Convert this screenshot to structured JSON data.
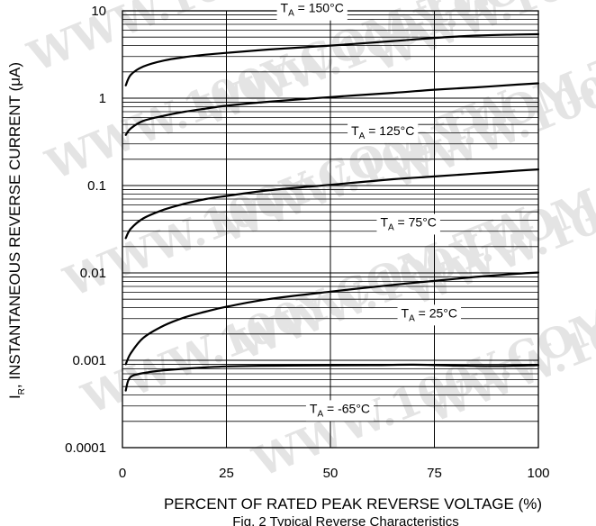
{
  "chart_data": {
    "type": "line",
    "caption": "Fig. 2 Typical Reverse Characteristics",
    "xlabel": "PERCENT OF RATED PEAK REVERSE VOLTAGE (%)",
    "ylabel": {
      "main": "I",
      "sub": "R",
      "rest": ", INSTANTANEOUS REVERSE CURRENT (μA)"
    },
    "x_scale": "linear",
    "y_scale": "log",
    "xlim": [
      0,
      100
    ],
    "ylim": [
      0.0001,
      10
    ],
    "grid": true,
    "x_ticks": [
      {
        "value": 0,
        "label": "0"
      },
      {
        "value": 25,
        "label": "25"
      },
      {
        "value": 50,
        "label": "50"
      },
      {
        "value": 75,
        "label": "75"
      },
      {
        "value": 100,
        "label": "100"
      }
    ],
    "y_ticks": [
      {
        "value": 10,
        "label": "10"
      },
      {
        "value": 1,
        "label": "1"
      },
      {
        "value": 0.1,
        "label": "0.1"
      },
      {
        "value": 0.01,
        "label": "0.01"
      },
      {
        "value": 0.001,
        "label": "0.001"
      },
      {
        "value": 0.0001,
        "label": "0.0001"
      }
    ],
    "series": [
      {
        "name": "150°C",
        "label": {
          "pre": "T",
          "sub": "A",
          "post": " = 150°C",
          "at_x": 38
        },
        "points": [
          [
            0.8,
            1.4
          ],
          [
            2,
            1.85
          ],
          [
            5,
            2.3
          ],
          [
            10,
            2.7
          ],
          [
            15,
            2.95
          ],
          [
            20,
            3.15
          ],
          [
            25,
            3.3
          ],
          [
            35,
            3.6
          ],
          [
            50,
            4.0
          ],
          [
            65,
            4.5
          ],
          [
            75,
            4.9
          ],
          [
            85,
            5.2
          ],
          [
            95,
            5.35
          ],
          [
            100,
            5.4
          ]
        ]
      },
      {
        "name": "125°C",
        "label": {
          "pre": "T",
          "sub": "A",
          "post": " = 125°C",
          "at_x": 55
        },
        "points": [
          [
            0.8,
            0.38
          ],
          [
            2,
            0.45
          ],
          [
            5,
            0.55
          ],
          [
            10,
            0.63
          ],
          [
            15,
            0.7
          ],
          [
            20,
            0.76
          ],
          [
            25,
            0.82
          ],
          [
            35,
            0.91
          ],
          [
            50,
            1.03
          ],
          [
            65,
            1.15
          ],
          [
            75,
            1.25
          ],
          [
            85,
            1.33
          ],
          [
            95,
            1.43
          ],
          [
            100,
            1.48
          ]
        ]
      },
      {
        "name": "75°C",
        "label": {
          "pre": "T",
          "sub": "A",
          "post": " = 75°C",
          "at_x": 62
        },
        "points": [
          [
            0.8,
            0.025
          ],
          [
            2,
            0.032
          ],
          [
            5,
            0.042
          ],
          [
            10,
            0.053
          ],
          [
            15,
            0.062
          ],
          [
            20,
            0.07
          ],
          [
            25,
            0.076
          ],
          [
            35,
            0.088
          ],
          [
            50,
            0.102
          ],
          [
            65,
            0.118
          ],
          [
            75,
            0.127
          ],
          [
            85,
            0.137
          ],
          [
            95,
            0.148
          ],
          [
            100,
            0.153
          ]
        ]
      },
      {
        "name": "25°C",
        "label": {
          "pre": "T",
          "sub": "A",
          "post": " = 25°C",
          "at_x": 67
        },
        "points": [
          [
            0.8,
            0.0009
          ],
          [
            2,
            0.0012
          ],
          [
            5,
            0.0018
          ],
          [
            10,
            0.0025
          ],
          [
            15,
            0.0031
          ],
          [
            20,
            0.0036
          ],
          [
            25,
            0.0041
          ],
          [
            35,
            0.005
          ],
          [
            50,
            0.0061
          ],
          [
            65,
            0.0073
          ],
          [
            75,
            0.0081
          ],
          [
            85,
            0.009
          ],
          [
            95,
            0.0098
          ],
          [
            100,
            0.0101
          ]
        ]
      },
      {
        "name": "-65°C",
        "label": {
          "pre": "T",
          "sub": "A",
          "post": " = -65°C",
          "at_x": 45
        },
        "points": [
          [
            0.8,
            0.00045
          ],
          [
            1.5,
            0.0006
          ],
          [
            3,
            0.00068
          ],
          [
            8,
            0.00075
          ],
          [
            15,
            0.0008
          ],
          [
            25,
            0.00085
          ],
          [
            40,
            0.00087
          ],
          [
            60,
            0.00088
          ],
          [
            70,
            0.00089
          ],
          [
            80,
            0.00087
          ],
          [
            90,
            0.00086
          ],
          [
            100,
            0.00088
          ]
        ]
      }
    ],
    "watermark": "WWW.100Y.COM.TW",
    "colors": {
      "line": "#000000",
      "grid": "#000000",
      "watermark": "#e4e4e4"
    }
  }
}
